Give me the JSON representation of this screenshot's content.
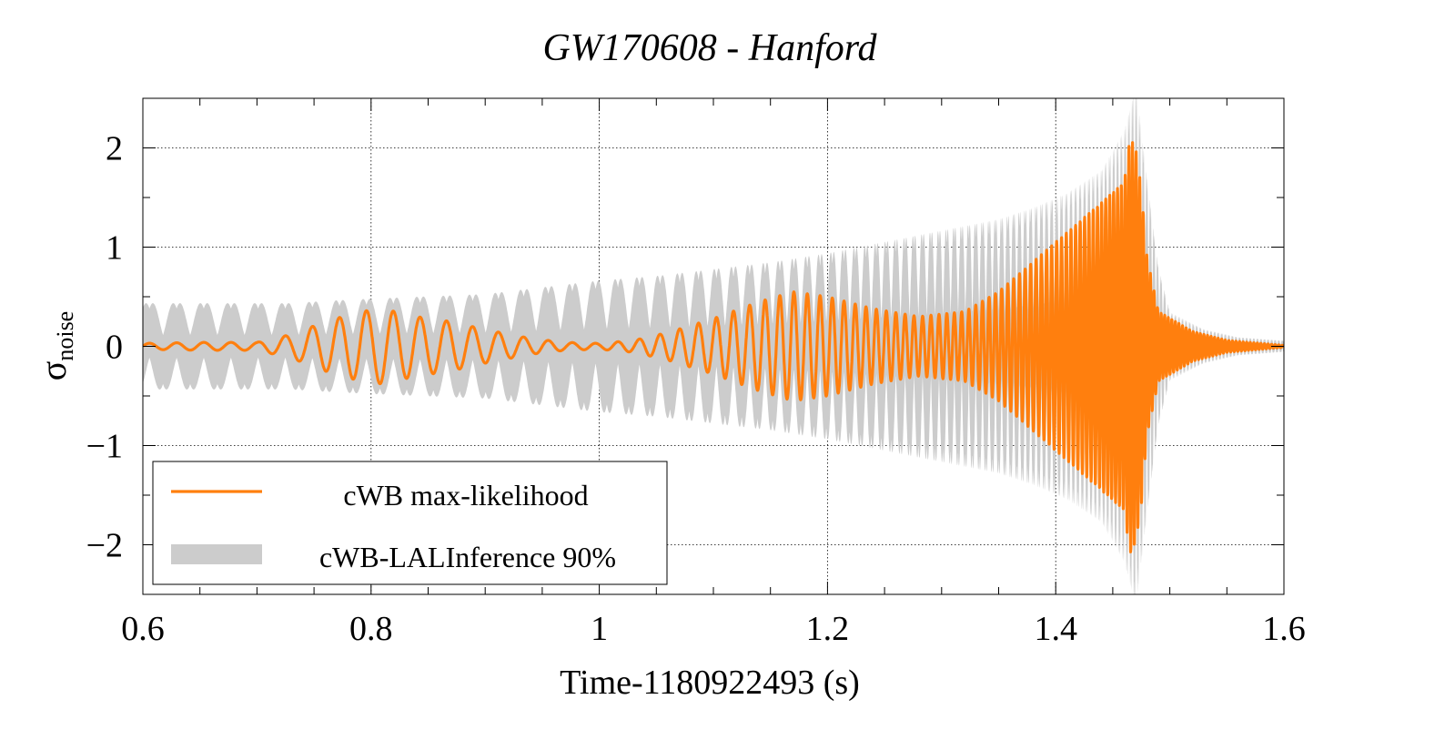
{
  "chart_data": {
    "type": "line",
    "title": "GW170608 - Hanford",
    "xlabel": "Time-1180922493 (s)",
    "ylabel": "σ",
    "ylabel_sub": "noise",
    "xlim": [
      0.6,
      1.6
    ],
    "ylim": [
      -2.5,
      2.5
    ],
    "grid": true,
    "x_ticks": [
      0.6,
      0.8,
      1.0,
      1.2,
      1.4,
      1.6
    ],
    "x_tick_labels": [
      "0.6",
      "0.8",
      "1",
      "1.2",
      "1.4",
      "1.6"
    ],
    "y_ticks": [
      -2,
      -1,
      0,
      1,
      2
    ],
    "y_tick_labels": [
      "−2",
      "−1",
      "0",
      "1",
      "2"
    ],
    "legend_position": "bottom-left",
    "series": [
      {
        "name": "cWB max-likelihood",
        "kind": "line",
        "color": "#ff7f0e",
        "envelope": {
          "x": [
            0.6,
            0.65,
            0.7,
            0.73,
            0.76,
            0.79,
            0.81,
            0.84,
            0.87,
            0.9,
            0.94,
            0.97,
            1.0,
            1.03,
            1.06,
            1.1,
            1.14,
            1.17,
            1.2,
            1.24,
            1.28,
            1.32,
            1.35,
            1.38,
            1.4,
            1.42,
            1.44,
            1.46,
            1.465,
            1.47,
            1.475,
            1.48,
            1.49,
            1.52,
            1.55,
            1.6
          ],
          "amp": [
            0.03,
            0.04,
            0.04,
            0.12,
            0.25,
            0.35,
            0.38,
            0.3,
            0.25,
            0.17,
            0.08,
            0.04,
            0.03,
            0.06,
            0.14,
            0.28,
            0.45,
            0.55,
            0.5,
            0.38,
            0.3,
            0.35,
            0.55,
            0.85,
            1.05,
            1.25,
            1.45,
            1.65,
            2.1,
            2.0,
            1.6,
            0.9,
            0.35,
            0.15,
            0.06,
            0.01
          ]
        }
      },
      {
        "name": "cWB-LALInference 90%",
        "kind": "band",
        "color": "#cccccc",
        "envelope": {
          "x": [
            0.6,
            0.65,
            0.7,
            0.73,
            0.76,
            0.8,
            0.85,
            0.9,
            0.95,
            1.0,
            1.05,
            1.1,
            1.15,
            1.2,
            1.25,
            1.3,
            1.35,
            1.38,
            1.41,
            1.44,
            1.46,
            1.47,
            1.48,
            1.49,
            1.5,
            1.53,
            1.56,
            1.6
          ],
          "amp": [
            0.38,
            0.38,
            0.38,
            0.38,
            0.4,
            0.42,
            0.44,
            0.46,
            0.52,
            0.58,
            0.62,
            0.68,
            0.74,
            0.82,
            0.92,
            1.02,
            1.12,
            1.22,
            1.35,
            1.55,
            1.9,
            2.3,
            1.5,
            0.7,
            0.3,
            0.15,
            0.08,
            0.05
          ]
        }
      }
    ],
    "chirp": {
      "phase_start_freq_hz": 42,
      "phase_end_freq_hz": 320,
      "merger_time": 1.472
    }
  }
}
